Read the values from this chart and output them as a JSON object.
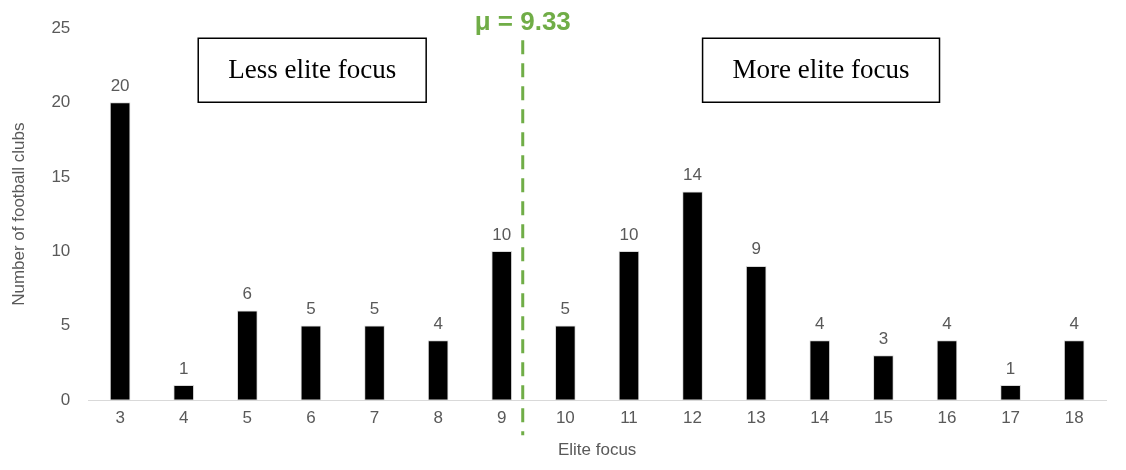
{
  "chart_data": {
    "type": "bar",
    "xlabel": "Elite focus",
    "ylabel": "Number of football clubs",
    "x": [
      3,
      4,
      5,
      6,
      7,
      8,
      9,
      10,
      11,
      12,
      13,
      14,
      15,
      16,
      17,
      18
    ],
    "values": [
      20,
      1,
      6,
      5,
      5,
      4,
      10,
      5,
      10,
      14,
      9,
      4,
      3,
      4,
      1,
      4
    ],
    "color": "#000000",
    "xlim": [
      2.5,
      18.5
    ],
    "xticks": [
      3,
      4,
      5,
      6,
      7,
      8,
      9,
      10,
      11,
      12,
      13,
      14,
      15,
      16,
      17,
      18
    ],
    "ylim": [
      0,
      25
    ],
    "yticks": [
      0,
      5,
      10,
      15,
      20,
      25
    ],
    "grid": false,
    "legend": false,
    "data_labels": true,
    "ref_lines": [
      {
        "axis": "x",
        "value": 9.33,
        "label": "μ = 9.33",
        "color": "#70ad47",
        "line_style": "dashed"
      }
    ],
    "annotations": [
      "Less elite focus",
      "More elite focus"
    ]
  }
}
